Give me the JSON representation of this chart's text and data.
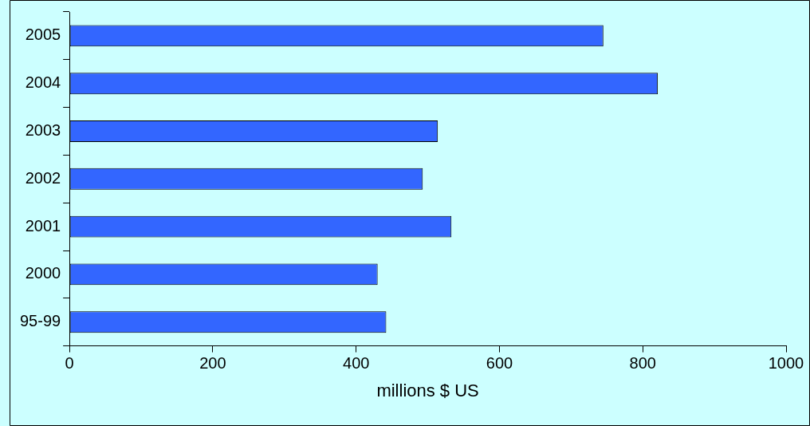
{
  "chart_data": {
    "type": "bar",
    "orientation": "horizontal",
    "xlabel": "millions $ US",
    "categories": [
      "2005",
      "2004",
      "2003",
      "2002",
      "2001",
      "2000",
      "95-99"
    ],
    "values": [
      745,
      821,
      514,
      493,
      533,
      430,
      442
    ],
    "color": "#3366ff",
    "xlim": [
      0,
      1000
    ],
    "xticks": [
      0,
      200,
      400,
      600,
      800,
      1000
    ],
    "grid": false,
    "legend": false
  }
}
